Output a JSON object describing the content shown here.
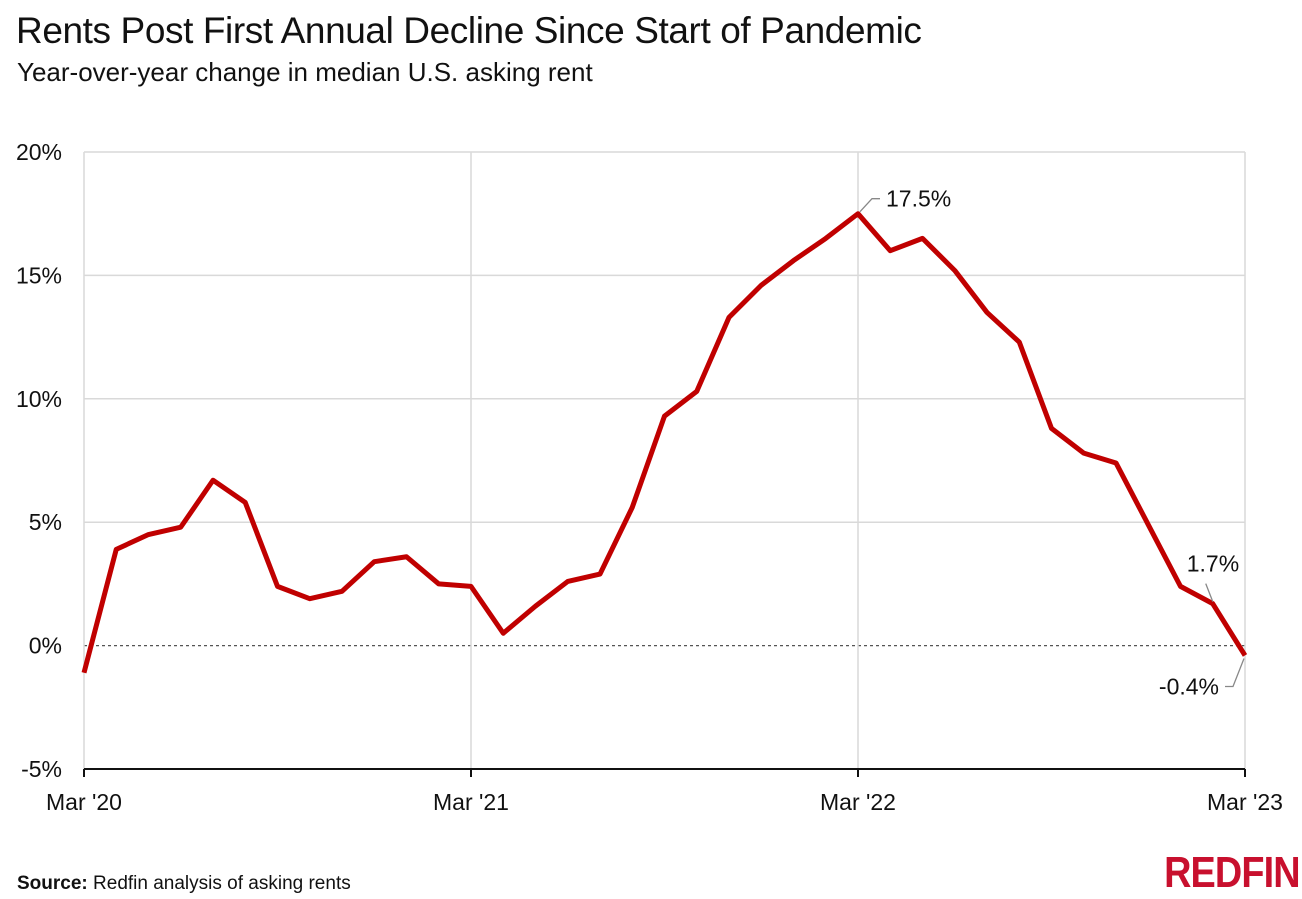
{
  "chart_data": {
    "type": "line",
    "title": "Rents Post First Annual Decline Since Start of Pandemic",
    "subtitle": "Year-over-year change in median U.S. asking rent",
    "xlabel": "",
    "ylabel": "",
    "ylim": [
      -5,
      20
    ],
    "y_ticks": [
      20,
      15,
      10,
      5,
      0,
      -5
    ],
    "y_tick_labels": [
      "20%",
      "15%",
      "10%",
      "5%",
      "0%",
      "-5%"
    ],
    "x_tick_labels": [
      "Mar '20",
      "Mar '21",
      "Mar '22",
      "Mar '23"
    ],
    "grid": true,
    "zero_line": "dashed",
    "series": [
      {
        "color": "#c00000",
        "x": [
          "2020-03",
          "2020-04",
          "2020-05",
          "2020-06",
          "2020-07",
          "2020-08",
          "2020-09",
          "2020-10",
          "2020-11",
          "2020-12",
          "2021-01",
          "2021-02",
          "2021-03",
          "2021-04",
          "2021-05",
          "2021-06",
          "2021-07",
          "2021-08",
          "2021-09",
          "2021-10",
          "2021-11",
          "2021-12",
          "2022-01",
          "2022-02",
          "2022-03",
          "2022-04",
          "2022-05",
          "2022-06",
          "2022-07",
          "2022-08",
          "2022-09",
          "2022-10",
          "2022-11",
          "2022-12",
          "2023-01",
          "2023-02",
          "2023-03"
        ],
        "values": [
          -1.1,
          3.9,
          4.5,
          4.8,
          6.7,
          5.8,
          2.4,
          1.9,
          2.2,
          3.4,
          3.6,
          2.5,
          2.4,
          0.5,
          1.6,
          2.6,
          2.9,
          5.6,
          9.3,
          10.3,
          13.3,
          14.6,
          15.6,
          16.5,
          17.5,
          16.0,
          16.5,
          15.2,
          13.5,
          12.3,
          8.8,
          7.8,
          7.4,
          4.9,
          2.4,
          1.7,
          -0.4
        ]
      }
    ],
    "annotations": [
      {
        "x": "2022-03",
        "value": 17.5,
        "label": "17.5%"
      },
      {
        "x": "2023-02",
        "value": 1.7,
        "label": "1.7%"
      },
      {
        "x": "2023-03",
        "value": -0.4,
        "label": "-0.4%"
      }
    ]
  },
  "footer": {
    "source_label": "Source:",
    "source_text": "Redfin analysis of asking rents"
  },
  "logo": {
    "text": "REDFIN",
    "color": "#c8102e"
  }
}
